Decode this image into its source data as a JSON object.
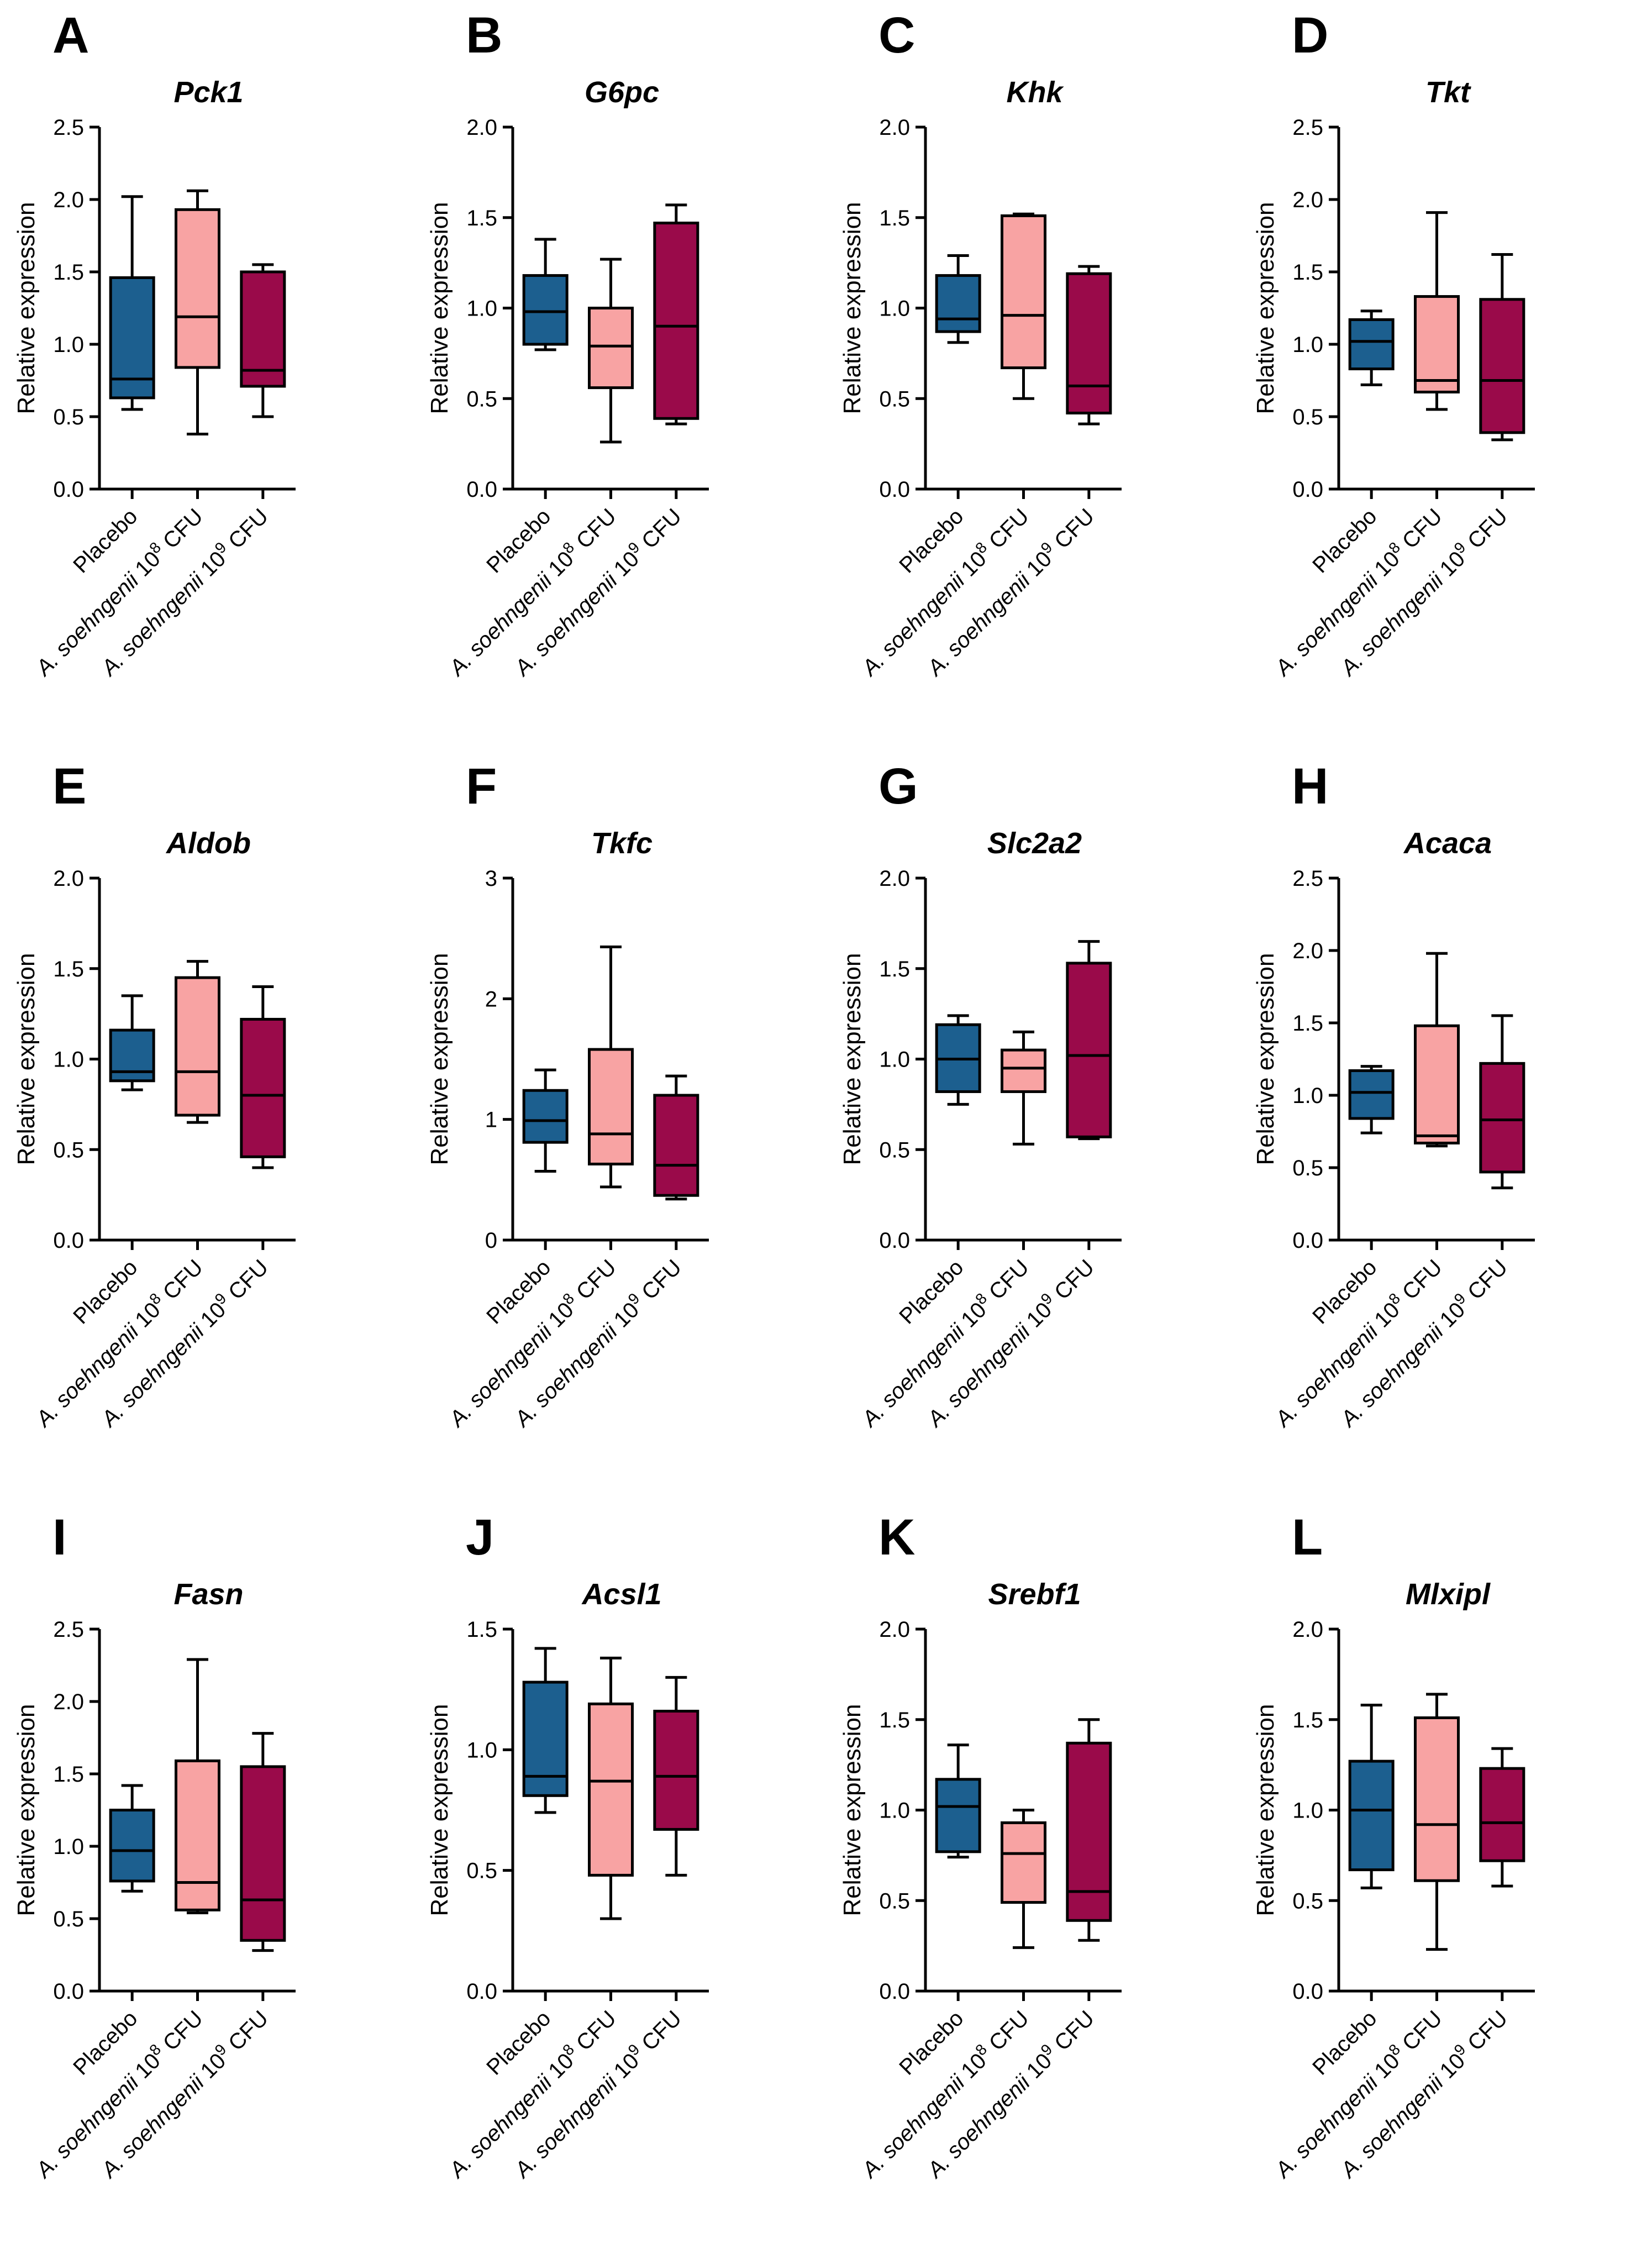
{
  "figure": {
    "y_axis_label": "Relative expression",
    "categories": [
      {
        "id": "placebo",
        "parts": [
          {
            "t": "Placebo"
          }
        ]
      },
      {
        "id": "low",
        "parts": [
          {
            "t": "A. soehngenii",
            "i": true
          },
          {
            "t": " 10"
          },
          {
            "t": "8",
            "sup": true
          },
          {
            "t": " CFU"
          }
        ]
      },
      {
        "id": "high",
        "parts": [
          {
            "t": "A. soehngenii",
            "i": true
          },
          {
            "t": " 10"
          },
          {
            "t": "9",
            "sup": true
          },
          {
            "t": " CFU"
          }
        ]
      }
    ],
    "colors": {
      "Placebo": "#1c5f8f",
      "A. soehngenii 10^8 CFU": "#f8a3a3",
      "A. soehngenii 10^9 CFU": "#9a0a4a"
    }
  },
  "chart_data": [
    {
      "type": "box",
      "panel": "A",
      "title": "Pck1",
      "ylabel": "Relative expression",
      "ylim": [
        0,
        2.5
      ],
      "yticks": [
        "0.0",
        "0.5",
        "1.0",
        "1.5",
        "2.0",
        "2.5"
      ],
      "series": [
        {
          "name": "Placebo",
          "min": 0.55,
          "q1": 0.63,
          "median": 0.76,
          "q3": 1.46,
          "max": 2.02
        },
        {
          "name": "A. soehngenii 10^8 CFU",
          "min": 0.38,
          "q1": 0.84,
          "median": 1.19,
          "q3": 1.93,
          "max": 2.06
        },
        {
          "name": "A. soehngenii 10^9 CFU",
          "min": 0.5,
          "q1": 0.71,
          "median": 0.82,
          "q3": 1.5,
          "max": 1.55
        }
      ]
    },
    {
      "type": "box",
      "panel": "B",
      "title": "G6pc",
      "ylabel": "Relative expression",
      "ylim": [
        0,
        2.0
      ],
      "yticks": [
        "0.0",
        "0.5",
        "1.0",
        "1.5",
        "2.0"
      ],
      "series": [
        {
          "name": "Placebo",
          "min": 0.77,
          "q1": 0.8,
          "median": 0.98,
          "q3": 1.18,
          "max": 1.38
        },
        {
          "name": "A. soehngenii 10^8 CFU",
          "min": 0.26,
          "q1": 0.56,
          "median": 0.79,
          "q3": 1.0,
          "max": 1.27
        },
        {
          "name": "A. soehngenii 10^9 CFU",
          "min": 0.36,
          "q1": 0.39,
          "median": 0.9,
          "q3": 1.47,
          "max": 1.57
        }
      ]
    },
    {
      "type": "box",
      "panel": "C",
      "title": "Khk",
      "ylabel": "Relative expression",
      "ylim": [
        0,
        2.0
      ],
      "yticks": [
        "0.0",
        "0.5",
        "1.0",
        "1.5",
        "2.0"
      ],
      "series": [
        {
          "name": "Placebo",
          "min": 0.81,
          "q1": 0.87,
          "median": 0.94,
          "q3": 1.18,
          "max": 1.29
        },
        {
          "name": "A. soehngenii 10^8 CFU",
          "min": 0.5,
          "q1": 0.67,
          "median": 0.96,
          "q3": 1.51,
          "max": 1.52
        },
        {
          "name": "A. soehngenii 10^9 CFU",
          "min": 0.36,
          "q1": 0.42,
          "median": 0.57,
          "q3": 1.19,
          "max": 1.23
        }
      ]
    },
    {
      "type": "box",
      "panel": "D",
      "title": "Tkt",
      "ylabel": "Relative expression",
      "ylim": [
        0,
        2.5
      ],
      "yticks": [
        "0.0",
        "0.5",
        "1.0",
        "1.5",
        "2.0",
        "2.5"
      ],
      "series": [
        {
          "name": "Placebo",
          "min": 0.72,
          "q1": 0.83,
          "median": 1.02,
          "q3": 1.17,
          "max": 1.23
        },
        {
          "name": "A. soehngenii 10^8 CFU",
          "min": 0.55,
          "q1": 0.67,
          "median": 0.75,
          "q3": 1.33,
          "max": 1.91
        },
        {
          "name": "A. soehngenii 10^9 CFU",
          "min": 0.34,
          "q1": 0.39,
          "median": 0.75,
          "q3": 1.31,
          "max": 1.62
        }
      ]
    },
    {
      "type": "box",
      "panel": "E",
      "title": "Aldob",
      "ylabel": "Relative expression",
      "ylim": [
        0,
        2.0
      ],
      "yticks": [
        "0.0",
        "0.5",
        "1.0",
        "1.5",
        "2.0"
      ],
      "series": [
        {
          "name": "Placebo",
          "min": 0.83,
          "q1": 0.88,
          "median": 0.93,
          "q3": 1.16,
          "max": 1.35
        },
        {
          "name": "A. soehngenii 10^8 CFU",
          "min": 0.65,
          "q1": 0.69,
          "median": 0.93,
          "q3": 1.45,
          "max": 1.54
        },
        {
          "name": "A. soehngenii 10^9 CFU",
          "min": 0.4,
          "q1": 0.46,
          "median": 0.8,
          "q3": 1.22,
          "max": 1.4
        }
      ]
    },
    {
      "type": "box",
      "panel": "F",
      "title": "Tkfc",
      "ylabel": "Relative expression",
      "ylim": [
        0,
        3
      ],
      "yticks": [
        "0",
        "1",
        "2",
        "3"
      ],
      "series": [
        {
          "name": "Placebo",
          "min": 0.57,
          "q1": 0.81,
          "median": 0.99,
          "q3": 1.24,
          "max": 1.41
        },
        {
          "name": "A. soehngenii 10^8 CFU",
          "min": 0.44,
          "q1": 0.63,
          "median": 0.88,
          "q3": 1.58,
          "max": 2.43
        },
        {
          "name": "A. soehngenii 10^9 CFU",
          "min": 0.34,
          "q1": 0.37,
          "median": 0.62,
          "q3": 1.2,
          "max": 1.36
        }
      ]
    },
    {
      "type": "box",
      "panel": "G",
      "title": "Slc2a2",
      "ylabel": "Relative expression",
      "ylim": [
        0,
        2.0
      ],
      "yticks": [
        "0.0",
        "0.5",
        "1.0",
        "1.5",
        "2.0"
      ],
      "series": [
        {
          "name": "Placebo",
          "min": 0.75,
          "q1": 0.82,
          "median": 1.0,
          "q3": 1.19,
          "max": 1.24
        },
        {
          "name": "A. soehngenii 10^8 CFU",
          "min": 0.53,
          "q1": 0.82,
          "median": 0.95,
          "q3": 1.05,
          "max": 1.15
        },
        {
          "name": "A. soehngenii 10^9 CFU",
          "min": 0.56,
          "q1": 0.57,
          "median": 1.02,
          "q3": 1.53,
          "max": 1.65
        }
      ]
    },
    {
      "type": "box",
      "panel": "H",
      "title": "Acaca",
      "ylabel": "Relative expression",
      "ylim": [
        0,
        2.5
      ],
      "yticks": [
        "0.0",
        "0.5",
        "1.0",
        "1.5",
        "2.0",
        "2.5"
      ],
      "series": [
        {
          "name": "Placebo",
          "min": 0.74,
          "q1": 0.84,
          "median": 1.02,
          "q3": 1.17,
          "max": 1.2
        },
        {
          "name": "A. soehngenii 10^8 CFU",
          "min": 0.65,
          "q1": 0.67,
          "median": 0.72,
          "q3": 1.48,
          "max": 1.98
        },
        {
          "name": "A. soehngenii 10^9 CFU",
          "min": 0.36,
          "q1": 0.47,
          "median": 0.83,
          "q3": 1.22,
          "max": 1.55
        }
      ]
    },
    {
      "type": "box",
      "panel": "I",
      "title": "Fasn",
      "ylabel": "Relative expression",
      "ylim": [
        0,
        2.5
      ],
      "yticks": [
        "0.0",
        "0.5",
        "1.0",
        "1.5",
        "2.0",
        "2.5"
      ],
      "series": [
        {
          "name": "Placebo",
          "min": 0.69,
          "q1": 0.76,
          "median": 0.97,
          "q3": 1.25,
          "max": 1.42
        },
        {
          "name": "A. soehngenii 10^8 CFU",
          "min": 0.54,
          "q1": 0.56,
          "median": 0.75,
          "q3": 1.59,
          "max": 2.29
        },
        {
          "name": "A. soehngenii 10^9 CFU",
          "min": 0.28,
          "q1": 0.35,
          "median": 0.63,
          "q3": 1.55,
          "max": 1.78
        }
      ]
    },
    {
      "type": "box",
      "panel": "J",
      "title": "Acsl1",
      "ylabel": "Relative expression",
      "ylim": [
        0,
        1.5
      ],
      "yticks": [
        "0.0",
        "0.5",
        "1.0",
        "1.5"
      ],
      "series": [
        {
          "name": "Placebo",
          "min": 0.74,
          "q1": 0.81,
          "median": 0.89,
          "q3": 1.28,
          "max": 1.42
        },
        {
          "name": "A. soehngenii 10^8 CFU",
          "min": 0.3,
          "q1": 0.48,
          "median": 0.87,
          "q3": 1.19,
          "max": 1.38
        },
        {
          "name": "A. soehngenii 10^9 CFU",
          "min": 0.48,
          "q1": 0.67,
          "median": 0.89,
          "q3": 1.16,
          "max": 1.3
        }
      ]
    },
    {
      "type": "box",
      "panel": "K",
      "title": "Srebf1",
      "ylabel": "Relative expression",
      "ylim": [
        0,
        2.0
      ],
      "yticks": [
        "0.0",
        "0.5",
        "1.0",
        "1.5",
        "2.0"
      ],
      "series": [
        {
          "name": "Placebo",
          "min": 0.74,
          "q1": 0.77,
          "median": 1.02,
          "q3": 1.17,
          "max": 1.36
        },
        {
          "name": "A. soehngenii 10^8 CFU",
          "min": 0.24,
          "q1": 0.49,
          "median": 0.76,
          "q3": 0.93,
          "max": 1.0
        },
        {
          "name": "A. soehngenii 10^9 CFU",
          "min": 0.28,
          "q1": 0.39,
          "median": 0.55,
          "q3": 1.37,
          "max": 1.5
        }
      ]
    },
    {
      "type": "box",
      "panel": "L",
      "title": "Mlxipl",
      "ylabel": "Relative expression",
      "ylim": [
        0,
        2.0
      ],
      "yticks": [
        "0.0",
        "0.5",
        "1.0",
        "1.5",
        "2.0"
      ],
      "series": [
        {
          "name": "Placebo",
          "min": 0.57,
          "q1": 0.67,
          "median": 1.0,
          "q3": 1.27,
          "max": 1.58
        },
        {
          "name": "A. soehngenii 10^8 CFU",
          "min": 0.23,
          "q1": 0.61,
          "median": 0.92,
          "q3": 1.51,
          "max": 1.64
        },
        {
          "name": "A. soehngenii 10^9 CFU",
          "min": 0.58,
          "q1": 0.72,
          "median": 0.93,
          "q3": 1.23,
          "max": 1.34
        }
      ]
    }
  ]
}
